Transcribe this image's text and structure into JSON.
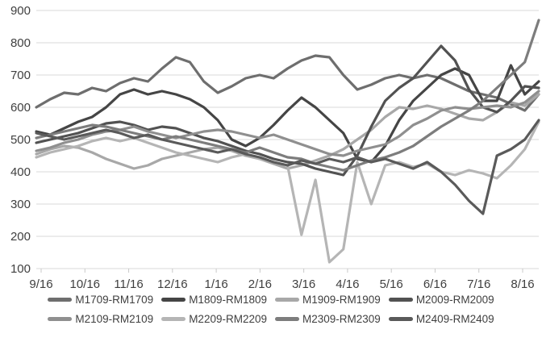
{
  "chart_data": {
    "type": "line",
    "title": "",
    "xlabel": "",
    "ylabel": "",
    "grid": true,
    "legend_position": "bottom",
    "x_axis": {
      "labels": [
        "9/16",
        "10/16",
        "11/16",
        "12/16",
        "1/16",
        "2/16",
        "3/16",
        "4/16",
        "5/16",
        "6/16",
        "7/16",
        "8/16"
      ]
    },
    "y_axis": {
      "min": 100,
      "max": 900,
      "step": 100,
      "tick_labels": [
        "100",
        "200",
        "300",
        "400",
        "500",
        "600",
        "700",
        "800",
        "900"
      ]
    },
    "series": [
      {
        "name": "M1709-RM1709",
        "color": "#6e6e6e",
        "values": [
          600,
          625,
          645,
          640,
          660,
          650,
          675,
          690,
          680,
          720,
          755,
          740,
          680,
          645,
          665,
          690,
          700,
          690,
          720,
          745,
          760,
          755,
          700,
          655,
          670,
          690,
          700,
          690,
          700,
          690,
          670,
          650,
          640,
          630,
          610,
          590,
          640
        ]
      },
      {
        "name": "M1809-RM1809",
        "color": "#454545",
        "values": [
          525,
          515,
          535,
          555,
          570,
          600,
          640,
          655,
          640,
          650,
          640,
          625,
          600,
          560,
          500,
          480,
          505,
          545,
          590,
          630,
          600,
          560,
          520,
          440,
          430,
          480,
          560,
          620,
          660,
          700,
          720,
          700,
          620,
          620,
          730,
          640,
          680
        ]
      },
      {
        "name": "M1909-RM1909",
        "color": "#a8a8a8",
        "values": [
          455,
          470,
          480,
          475,
          460,
          440,
          425,
          410,
          420,
          440,
          450,
          460,
          470,
          475,
          465,
          450,
          440,
          425,
          410,
          420,
          435,
          450,
          470,
          500,
          530,
          570,
          600,
          595,
          605,
          595,
          580,
          565,
          560,
          585,
          615,
          605,
          640
        ]
      },
      {
        "name": "M2009-RM2009",
        "color": "#525252",
        "values": [
          490,
          500,
          510,
          520,
          535,
          550,
          555,
          545,
          530,
          540,
          535,
          520,
          505,
          495,
          480,
          465,
          455,
          440,
          430,
          425,
          410,
          400,
          390,
          450,
          540,
          620,
          660,
          690,
          740,
          790,
          745,
          655,
          600,
          585,
          620,
          665,
          660
        ]
      },
      {
        "name": "M2109-RM2109",
        "color": "#8f8f8f",
        "values": [
          465,
          475,
          490,
          500,
          515,
          525,
          530,
          540,
          525,
          515,
          505,
          515,
          525,
          530,
          525,
          515,
          505,
          515,
          500,
          485,
          470,
          455,
          450,
          465,
          475,
          485,
          510,
          545,
          565,
          590,
          600,
          595,
          600,
          605,
          600,
          615,
          650
        ]
      },
      {
        "name": "M2209-RM2209",
        "color": "#b5b5b5",
        "values": [
          445,
          460,
          470,
          480,
          495,
          505,
          495,
          505,
          490,
          475,
          460,
          450,
          440,
          430,
          445,
          455,
          440,
          430,
          420,
          205,
          375,
          120,
          160,
          430,
          300,
          420,
          430,
          415,
          425,
          400,
          390,
          405,
          395,
          380,
          420,
          470,
          555
        ]
      },
      {
        "name": "M2309-RM2309",
        "color": "#7d7d7d",
        "values": [
          505,
          515,
          525,
          535,
          545,
          540,
          530,
          520,
          510,
          500,
          510,
          500,
          490,
          480,
          470,
          460,
          475,
          460,
          445,
          440,
          425,
          415,
          405,
          420,
          435,
          445,
          460,
          480,
          510,
          540,
          565,
          590,
          620,
          660,
          700,
          740,
          870
        ]
      },
      {
        "name": "M2409-RM2409",
        "color": "#5a5a5a",
        "values": [
          520,
          510,
          500,
          510,
          520,
          530,
          520,
          505,
          515,
          500,
          490,
          480,
          470,
          460,
          470,
          455,
          445,
          430,
          420,
          435,
          425,
          440,
          430,
          445,
          430,
          440,
          425,
          410,
          430,
          400,
          360,
          310,
          270,
          450,
          470,
          500,
          560
        ]
      }
    ]
  },
  "style": {
    "grid_color": "#d9d9d9",
    "tick_color": "#c9c9c9",
    "axis_text_color": "#3f3f3f",
    "background": "#ffffff"
  }
}
